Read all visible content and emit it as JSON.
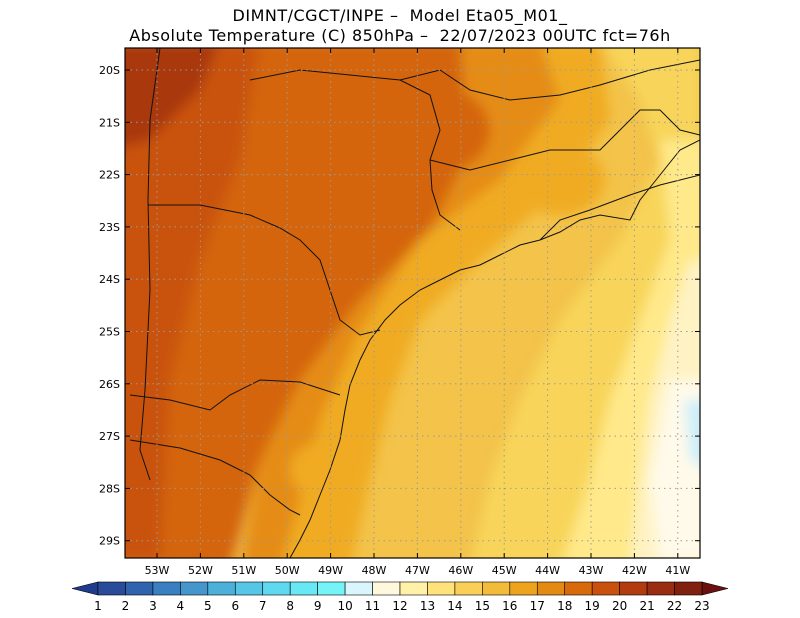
{
  "title_line1": "DIMNT/CGCT/INPE –  Model Eta05_M01_",
  "title_line2": "Absolute Temperature (C) 850hPa –  22/07/2023 00UTC fct=76h",
  "map": {
    "lat_labels": [
      "20S",
      "21S",
      "22S",
      "23S",
      "24S",
      "25S",
      "26S",
      "27S",
      "28S",
      "29S"
    ],
    "lon_labels": [
      "53W",
      "52W",
      "51W",
      "50W",
      "49W",
      "48W",
      "47W",
      "46W",
      "45W",
      "44W",
      "43W",
      "42W",
      "41W"
    ],
    "grid": "dotted"
  },
  "colorbar": {
    "labels": [
      "1",
      "2",
      "3",
      "4",
      "5",
      "6",
      "7",
      "8",
      "9",
      "10",
      "11",
      "12",
      "13",
      "14",
      "15",
      "16",
      "17",
      "18",
      "19",
      "20",
      "21",
      "22",
      "23"
    ],
    "colors": [
      "#2a4b9a",
      "#2f63ad",
      "#3a7fc0",
      "#4596cc",
      "#4cb0da",
      "#56c6e6",
      "#5fd9ef",
      "#67e8f4",
      "#74f4f6",
      "#d8f6fb",
      "#fff8dc",
      "#fff1a8",
      "#ffe27a",
      "#f9cf55",
      "#f3bb3a",
      "#eea31c",
      "#e38a12",
      "#d86a0c",
      "#c9500d",
      "#b23b10",
      "#9a2c12",
      "#80200e"
    ],
    "low_color": "#1f3b8c",
    "high_color": "#6b1010"
  }
}
